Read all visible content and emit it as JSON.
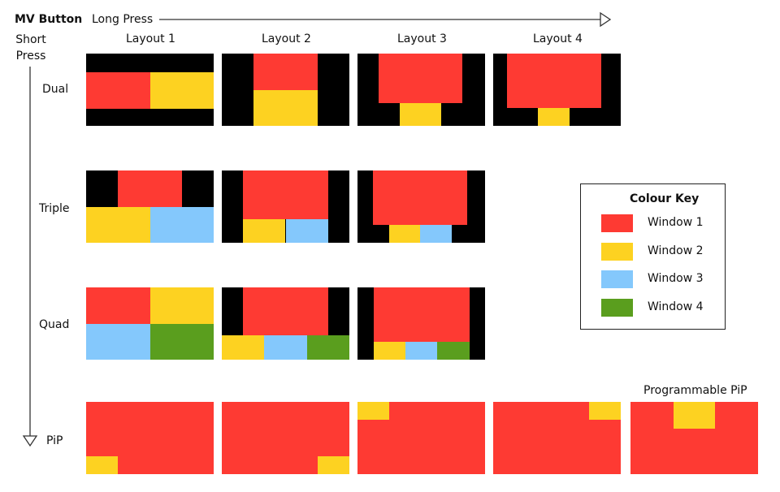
{
  "header": {
    "title": "MV Button",
    "long_press": "Long Press",
    "short_press": "Short Press"
  },
  "columns": [
    "Layout 1",
    "Layout 2",
    "Layout 3",
    "Layout 4"
  ],
  "rows": [
    "Dual",
    "Triple",
    "Quad",
    "PiP"
  ],
  "programmable_label": "Programmable PiP",
  "legend": {
    "title": "Colour Key",
    "items": [
      {
        "label": "Window 1",
        "color": "#fe3a33"
      },
      {
        "label": "Window 2",
        "color": "#fdd221"
      },
      {
        "label": "Window 3",
        "color": "#84c8fc"
      },
      {
        "label": "Window 4",
        "color": "#5a9e1e"
      }
    ]
  },
  "background_color": "#000000"
}
